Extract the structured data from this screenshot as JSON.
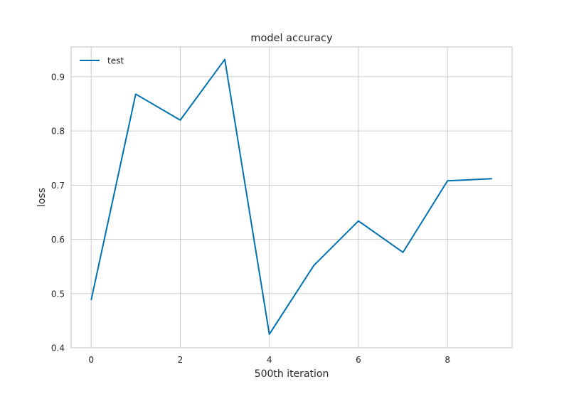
{
  "chart_data": {
    "type": "line",
    "title": "model accuracy",
    "xlabel": "500th iteration",
    "ylabel": "loss",
    "x": [
      0,
      1,
      2,
      3,
      4,
      5,
      6,
      7,
      8,
      9
    ],
    "series": [
      {
        "name": "test",
        "color": "#0072B2",
        "values": [
          0.488,
          0.868,
          0.82,
          0.932,
          0.425,
          0.552,
          0.634,
          0.576,
          0.708,
          0.712
        ]
      }
    ],
    "xlim": [
      -0.45,
      9.45
    ],
    "ylim": [
      0.4,
      0.955
    ],
    "xticks": [
      0,
      2,
      4,
      6,
      8
    ],
    "yticks": [
      0.4,
      0.5,
      0.6,
      0.7,
      0.8,
      0.9
    ],
    "xtick_labels": [
      "0",
      "2",
      "4",
      "6",
      "8"
    ],
    "ytick_labels": [
      "0.4",
      "0.5",
      "0.6",
      "0.7",
      "0.8",
      "0.9"
    ],
    "grid": true,
    "legend": "top-left",
    "colors": {
      "grid": "#cccccc",
      "frame": "#cccccc",
      "text": "#262626"
    }
  }
}
